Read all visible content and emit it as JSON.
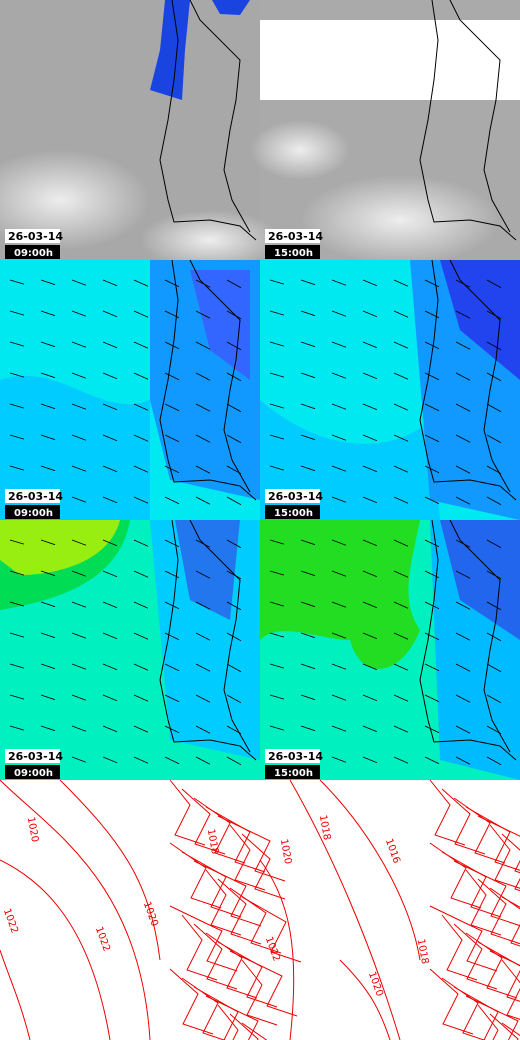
{
  "panels": [
    {
      "date": "26-03-14",
      "time": "09:00h"
    },
    {
      "date": "26-03-14",
      "time": "15:00h"
    },
    {
      "date": "26-03-14",
      "time": "09:00h"
    },
    {
      "date": "26-03-14",
      "time": "15:00h"
    },
    {
      "date": "26-03-14",
      "time": "09:00h"
    },
    {
      "date": "26-03-14",
      "time": "15:00h"
    }
  ],
  "contours": [
    {
      "labels": [
        "1020",
        "1018",
        "1020",
        "1022",
        "1022"
      ]
    },
    {
      "labels": [
        "1018",
        "1020",
        "1016",
        "1018",
        "1020",
        "1022"
      ]
    }
  ]
}
